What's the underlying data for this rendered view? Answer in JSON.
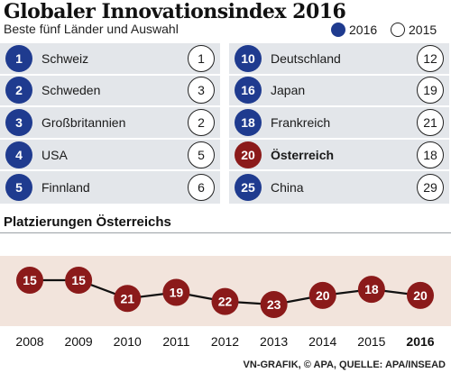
{
  "header": {
    "title": "Globaler Innovationsindex 2016",
    "subtitle": "Beste fünf Länder und Auswahl"
  },
  "legend": {
    "current": "2016",
    "previous": "2015",
    "current_color": "#1f3b8f"
  },
  "left_table": [
    {
      "rank_2016": "1",
      "country": "Schweiz",
      "rank_2015": "1"
    },
    {
      "rank_2016": "2",
      "country": "Schweden",
      "rank_2015": "3"
    },
    {
      "rank_2016": "3",
      "country": "Großbritannien",
      "rank_2015": "2"
    },
    {
      "rank_2016": "4",
      "country": "USA",
      "rank_2015": "5"
    },
    {
      "rank_2016": "5",
      "country": "Finnland",
      "rank_2015": "6"
    }
  ],
  "right_table": [
    {
      "rank_2016": "10",
      "country": "Deutschland",
      "rank_2015": "12"
    },
    {
      "rank_2016": "16",
      "country": "Japan",
      "rank_2015": "19"
    },
    {
      "rank_2016": "18",
      "country": "Frankreich",
      "rank_2015": "21"
    },
    {
      "rank_2016": "20",
      "country": "Österreich",
      "rank_2015": "18",
      "highlight": true
    },
    {
      "rank_2016": "25",
      "country": "China",
      "rank_2015": "29"
    }
  ],
  "section_title": "Platzierungen Österreichs",
  "source": "VN-GRAFIK, © APA, QUELLE: APA/INSEAD",
  "chart_data": {
    "type": "line",
    "x": [
      "2008",
      "2009",
      "2010",
      "2011",
      "2012",
      "2013",
      "2014",
      "2015",
      "2016"
    ],
    "series": [
      {
        "values": [
          15,
          15,
          21,
          19,
          22,
          23,
          20,
          18,
          20
        ]
      }
    ],
    "bold_x": "2016",
    "marker_color": "#8b1a1a",
    "line_color": "#111111",
    "band_color": "#f2e4dc",
    "grid": false
  }
}
